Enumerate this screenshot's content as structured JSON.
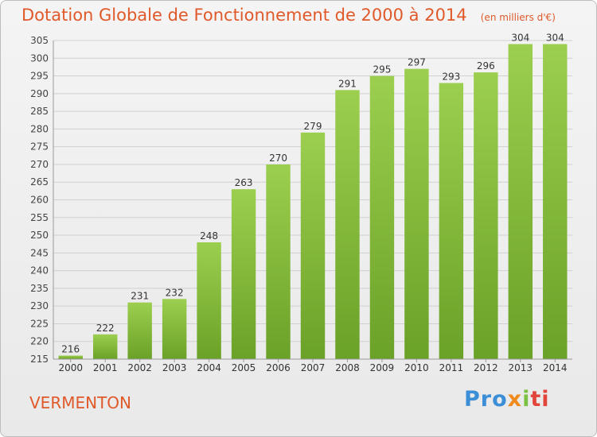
{
  "title": "Dotation Globale de Fonctionnement de 2000 à 2014",
  "unit_note": "(en milliers d'€)",
  "commune": "VERMENTON",
  "brand": {
    "p1": "Pro",
    "p2": "x",
    "p3": "i",
    "p4": "ti"
  },
  "colors": {
    "title": "#e0592a",
    "bar_top": "#9ccf4f",
    "bar_bottom": "#6aa127",
    "grid": "#d0d0d0"
  },
  "chart_data": {
    "type": "bar",
    "categories": [
      "2000",
      "2001",
      "2002",
      "2003",
      "2004",
      "2005",
      "2006",
      "2007",
      "2008",
      "2009",
      "2010",
      "2011",
      "2012",
      "2013",
      "2014"
    ],
    "values": [
      216,
      222,
      231,
      232,
      248,
      263,
      270,
      279,
      291,
      295,
      297,
      293,
      296,
      304,
      304
    ],
    "ylim": [
      215,
      305
    ],
    "yticks": [
      215,
      220,
      225,
      230,
      235,
      240,
      245,
      250,
      255,
      260,
      265,
      270,
      275,
      280,
      285,
      290,
      295,
      300,
      305
    ],
    "grid": true,
    "title": "Dotation Globale de Fonctionnement de 2000 à 2014",
    "xlabel": "",
    "ylabel": ""
  }
}
